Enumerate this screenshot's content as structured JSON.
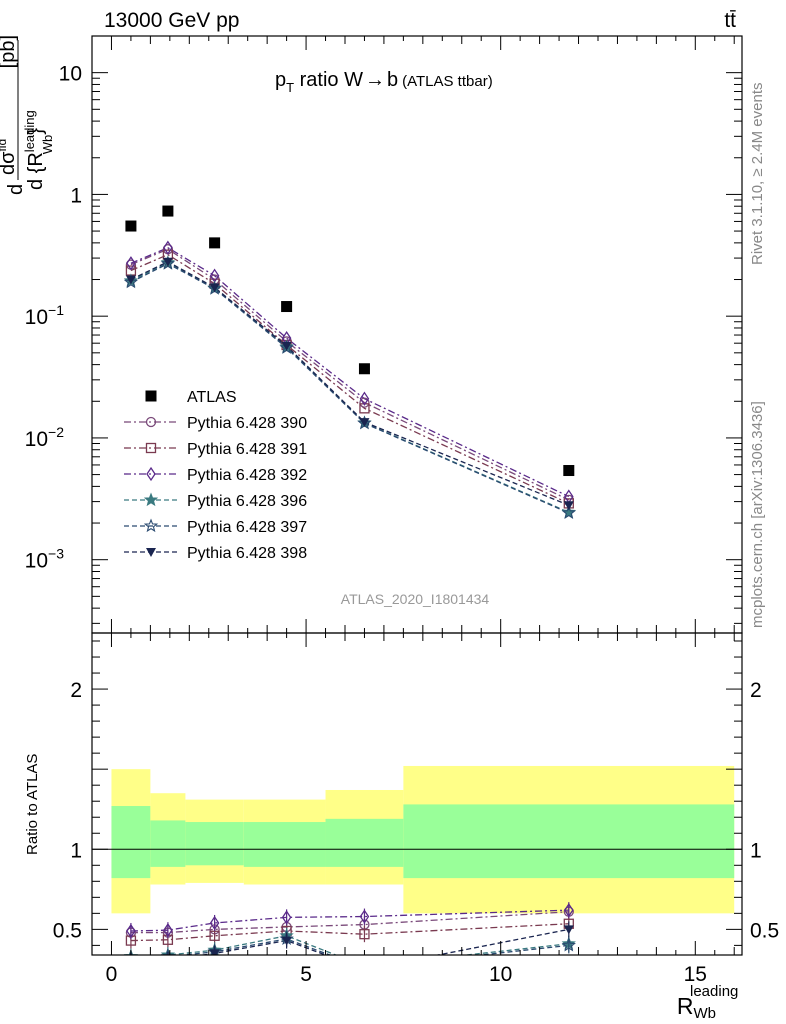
{
  "header": {
    "left_label": "13000 GeV pp",
    "right_label": "tt̄"
  },
  "side_text": {
    "rivet": "Rivet 3.1.10, ≥ 2.4M events",
    "mcplots": "mcplots.cern.ch [arXiv:1306.3436]"
  },
  "chart_data": [
    {
      "type": "scatter",
      "panel": "main",
      "title": "p_T ratio W → b",
      "title_main": "p",
      "title_sub": "T",
      "title_rest": " ratio W",
      "title_arrow": "→",
      "title_b": "b",
      "title_small": "(ATLAS ttbar)",
      "watermark": "ATLAS_2020_I1801434",
      "ylabel": "dσ / d{R_Wb^leading} [pb]",
      "y_scale": "log",
      "ylim": [
        0.00025,
        20
      ],
      "xlim": [
        -0.5,
        16.2
      ],
      "y_ticks": [
        {
          "value": 10,
          "label": "10"
        },
        {
          "value": 1,
          "label": "1"
        },
        {
          "value": 0.1,
          "label": "10",
          "exp": "−1"
        },
        {
          "value": 0.01,
          "label": "10",
          "exp": "−2"
        },
        {
          "value": 0.001,
          "label": "10",
          "exp": "−3"
        }
      ],
      "legend_position": "middle-left",
      "x": [
        0.5,
        1.45,
        2.65,
        4.5,
        6.5,
        11.75
      ],
      "series": [
        {
          "name": "ATLAS",
          "values": [
            0.55,
            0.73,
            0.4,
            0.12,
            0.037,
            0.0054
          ],
          "color": "#000000",
          "marker": "filled-square",
          "line": "none"
        },
        {
          "name": "Pythia 6.428 390",
          "values": [
            0.265,
            0.355,
            0.2,
            0.062,
            0.0195,
            0.0031
          ],
          "color": "#7a4a7a",
          "marker": "open-circle",
          "line": "dashdot"
        },
        {
          "name": "Pythia 6.428 391",
          "values": [
            0.237,
            0.32,
            0.185,
            0.058,
            0.0175,
            0.0029
          ],
          "color": "#7a3a50",
          "marker": "open-square",
          "line": "dashdot"
        },
        {
          "name": "Pythia 6.428 392",
          "values": [
            0.272,
            0.365,
            0.215,
            0.066,
            0.021,
            0.0033
          ],
          "color": "#5a2a8a",
          "marker": "open-diamond",
          "line": "dashdot"
        },
        {
          "name": "Pythia 6.428 396",
          "values": [
            0.195,
            0.275,
            0.17,
            0.056,
            0.0133,
            0.00245
          ],
          "color": "#3a7a80",
          "marker": "filled-star",
          "line": "dashed"
        },
        {
          "name": "Pythia 6.428 397",
          "values": [
            0.19,
            0.27,
            0.168,
            0.055,
            0.0132,
            0.00242
          ],
          "color": "#2a4a70",
          "marker": "open-star",
          "line": "dashed"
        },
        {
          "name": "Pythia 6.428 398",
          "values": [
            0.2,
            0.28,
            0.172,
            0.057,
            0.0135,
            0.0028
          ],
          "color": "#1a2550",
          "marker": "filled-triangle-down",
          "line": "dashed"
        }
      ]
    },
    {
      "type": "scatter",
      "panel": "ratio",
      "ylabel": "Ratio to ATLAS",
      "xlabel": "R_Wb^leading",
      "xlabel_main": "R",
      "xlabel_sub": "Wb",
      "xlabel_sup": "leading",
      "ylim": [
        0.34,
        2.35
      ],
      "xlim": [
        -0.5,
        16.2
      ],
      "y_ticks": [
        {
          "value": 2,
          "label": "2"
        },
        {
          "value": 1.5,
          "label": ""
        },
        {
          "value": 1,
          "label": "1"
        },
        {
          "value": 0.5,
          "label": "0.5"
        }
      ],
      "x_ticks": [
        {
          "value": 0,
          "label": "0"
        },
        {
          "value": 5,
          "label": "5"
        },
        {
          "value": 10,
          "label": "10"
        },
        {
          "value": 15,
          "label": "15"
        }
      ],
      "bands": [
        {
          "x0": 0,
          "x1": 1,
          "green": [
            0.82,
            1.27
          ],
          "yellow": [
            0.6,
            1.5
          ]
        },
        {
          "x0": 1,
          "x1": 1.9,
          "green": [
            0.89,
            1.18
          ],
          "yellow": [
            0.78,
            1.35
          ]
        },
        {
          "x0": 1.9,
          "x1": 3.4,
          "green": [
            0.9,
            1.17
          ],
          "yellow": [
            0.79,
            1.31
          ]
        },
        {
          "x0": 3.4,
          "x1": 5.5,
          "green": [
            0.89,
            1.17
          ],
          "yellow": [
            0.78,
            1.31
          ]
        },
        {
          "x0": 5.5,
          "x1": 7.5,
          "green": [
            0.89,
            1.19
          ],
          "yellow": [
            0.78,
            1.37
          ]
        },
        {
          "x0": 7.5,
          "x1": 16,
          "green": [
            0.82,
            1.28
          ],
          "yellow": [
            0.6,
            1.52
          ]
        }
      ],
      "x": [
        0.5,
        1.45,
        2.65,
        4.5,
        6.5,
        11.75
      ],
      "series": [
        {
          "name": "Pythia 6.428 390",
          "values": [
            0.48,
            0.48,
            0.5,
            0.515,
            0.53,
            0.61
          ],
          "color": "#7a4a7a",
          "marker": "open-circle",
          "line": "dashdot"
        },
        {
          "name": "Pythia 6.428 391",
          "values": [
            0.43,
            0.435,
            0.46,
            0.49,
            0.47,
            0.535
          ],
          "color": "#7a3a50",
          "marker": "open-square",
          "line": "dashdot"
        },
        {
          "name": "Pythia 6.428 392",
          "values": [
            0.49,
            0.495,
            0.54,
            0.575,
            0.58,
            0.62
          ],
          "color": "#5a2a8a",
          "marker": "open-diamond",
          "line": "dashdot"
        },
        {
          "name": "Pythia 6.428 396",
          "values": [
            0.33,
            0.34,
            0.37,
            0.46,
            0.27,
            0.41
          ],
          "color": "#3a7a80",
          "marker": "filled-star",
          "line": "dashed"
        },
        {
          "name": "Pythia 6.428 397",
          "values": [
            0.32,
            0.33,
            0.36,
            0.44,
            0.26,
            0.4
          ],
          "color": "#2a4a70",
          "marker": "open-star",
          "line": "dashed"
        },
        {
          "name": "Pythia 6.428 398",
          "values": [
            0.3,
            0.31,
            0.35,
            0.43,
            0.25,
            0.5
          ],
          "color": "#1a2550",
          "marker": "filled-triangle-down",
          "line": "dashed"
        }
      ]
    }
  ]
}
